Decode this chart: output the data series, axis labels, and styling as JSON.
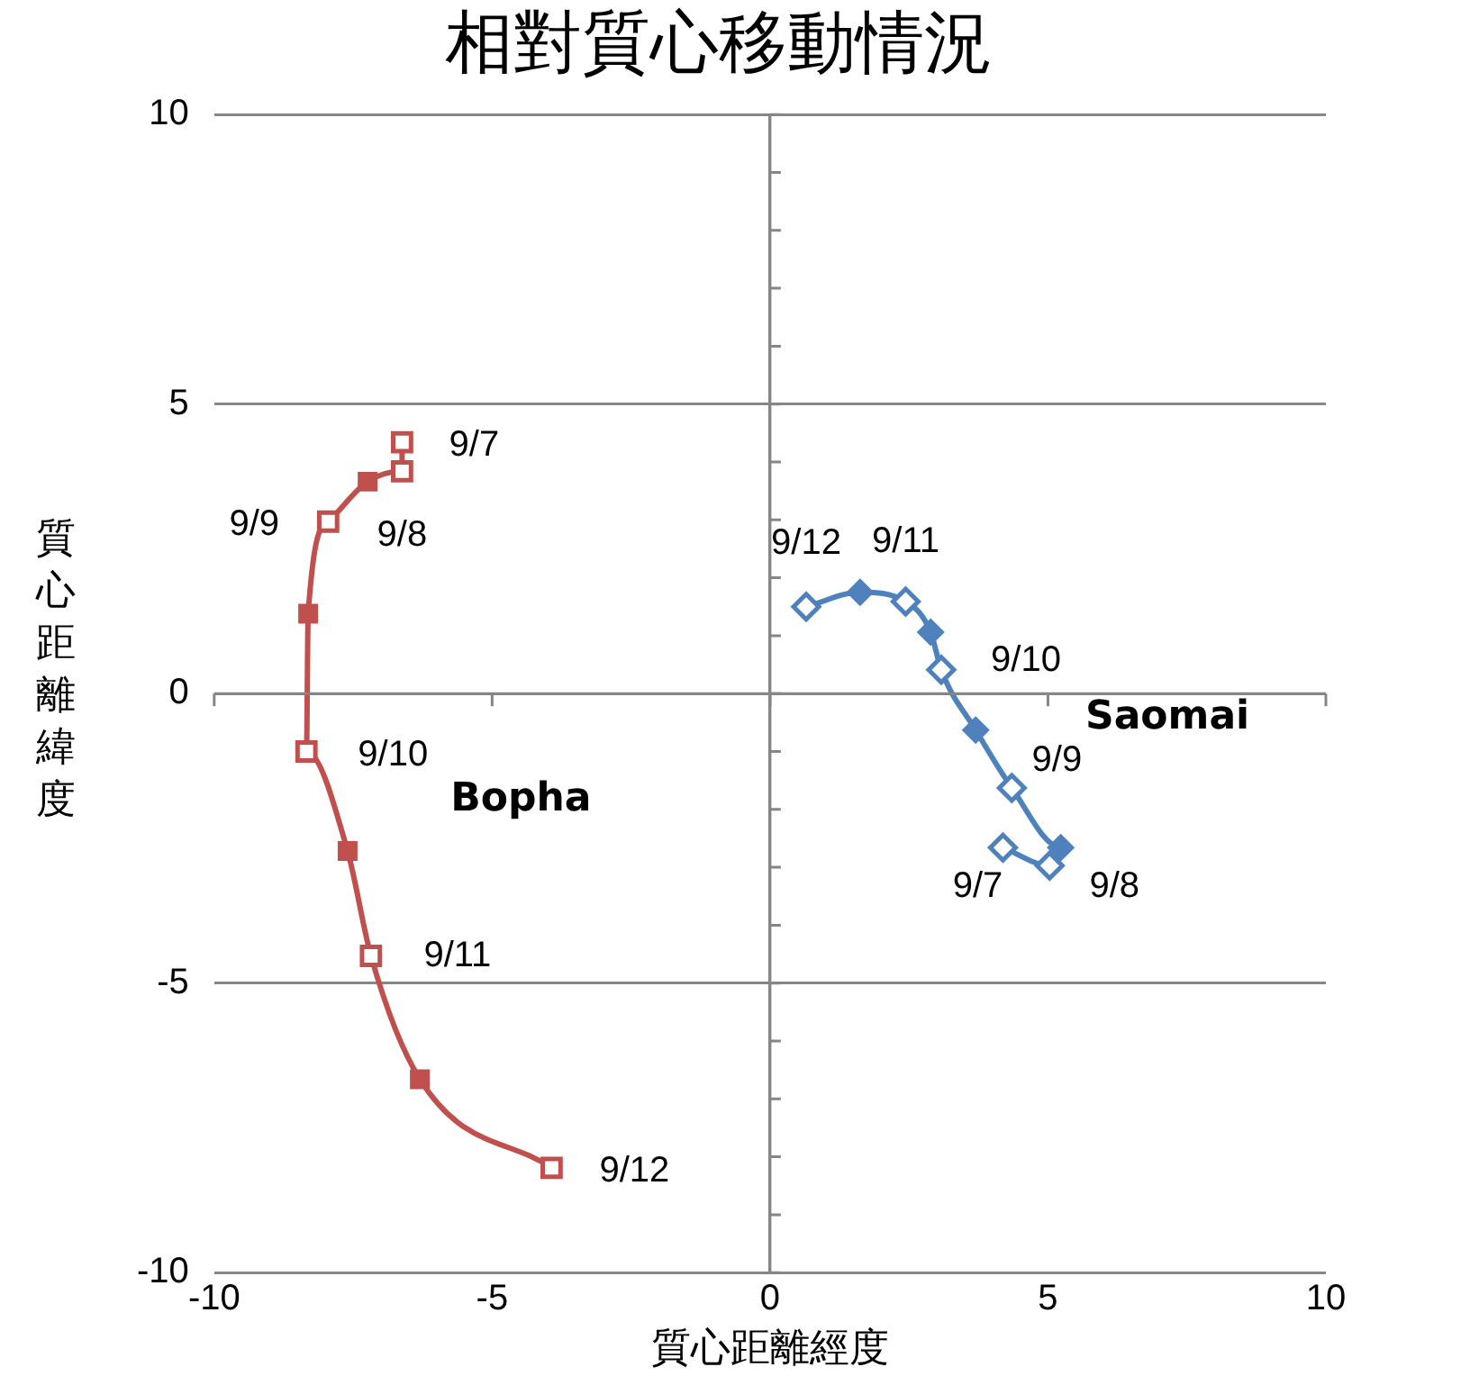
{
  "chart_data": {
    "type": "line",
    "title": "相對質心移動情況",
    "xlabel": "質心距離經度",
    "ylabel": "質心距離緯度",
    "xlim": [
      -10,
      10
    ],
    "xticks": [
      -10,
      -5,
      0,
      5,
      10
    ],
    "ylim": [
      -10,
      10
    ],
    "yticks": [
      -10,
      -5,
      0,
      5,
      10
    ],
    "grid": true,
    "legend": false,
    "series": [
      {
        "name": "Bopha",
        "color": "#c0504d",
        "marker": "square",
        "x": [
          -6.62,
          -6.62,
          -7.24,
          -7.95,
          -8.31,
          -8.34,
          -7.6,
          -7.18,
          -6.3,
          -3.93
        ],
        "values": [
          4.34,
          3.84,
          3.66,
          2.97,
          1.38,
          -1.0,
          -2.72,
          -4.53,
          -6.66,
          -8.19
        ]
      },
      {
        "type": "scatter",
        "color": "#c0504d",
        "marker": "square",
        "x": [
          -6.62,
          -6.62,
          -7.95,
          -8.34,
          -7.18,
          -3.93
        ],
        "values": [
          4.34,
          3.84,
          2.97,
          -1.0,
          -4.53,
          -8.19
        ]
      },
      {
        "name": "Saomai",
        "color": "#4f81bd",
        "marker": "diamond",
        "x": [
          4.19,
          5.03,
          5.23,
          4.35,
          3.7,
          3.08,
          2.89,
          2.44,
          1.62,
          0.65
        ],
        "values": [
          -2.66,
          -2.97,
          -2.66,
          -1.63,
          -0.63,
          0.41,
          1.06,
          1.59,
          1.75,
          1.5
        ]
      },
      {
        "type": "scatter",
        "color": "#4f81bd",
        "marker": "diamond",
        "x": [
          4.19,
          5.03,
          4.35,
          3.08,
          2.44,
          0.65
        ],
        "values": [
          -2.66,
          -2.97,
          -1.63,
          0.41,
          1.59,
          1.5
        ]
      }
    ],
    "annotations": [
      {
        "text": "9/7",
        "x": -6.62,
        "y": 4.34
      },
      {
        "text": "9/8",
        "x": -6.62,
        "y": 3.84
      },
      {
        "text": "9/9",
        "x": -7.95,
        "y": 2.97
      },
      {
        "text": "9/10",
        "x": -8.34,
        "y": -1.0
      },
      {
        "text": "9/11",
        "x": -7.18,
        "y": -4.53
      },
      {
        "text": "9/12",
        "x": -3.93,
        "y": -8.19
      },
      {
        "text": "9/12",
        "x": 0.65,
        "y": 1.5
      },
      {
        "text": "9/11",
        "x": 2.44,
        "y": 1.59
      },
      {
        "text": "9/10",
        "x": 3.08,
        "y": 0.41
      },
      {
        "text": "9/9",
        "x": 4.35,
        "y": -1.63
      },
      {
        "text": "9/7",
        "x": 4.19,
        "y": -2.66
      },
      {
        "text": "9/8",
        "x": 5.03,
        "y": -2.97
      }
    ]
  }
}
